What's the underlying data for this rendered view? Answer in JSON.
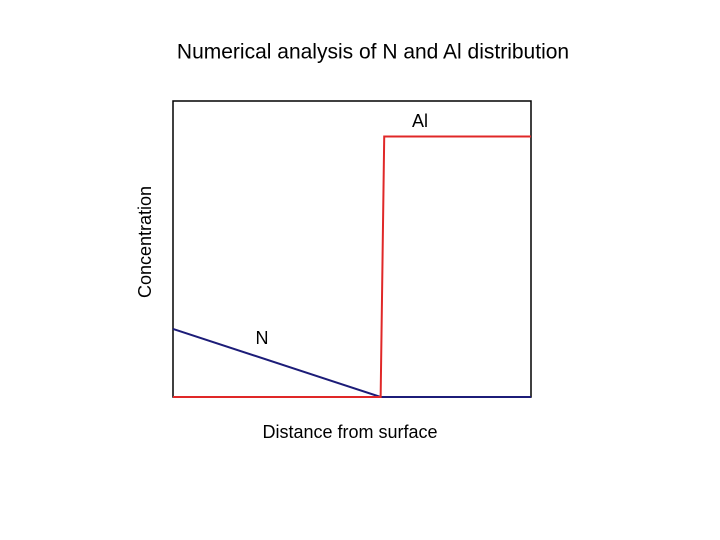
{
  "chart_data": {
    "type": "line",
    "title": "Numerical analysis of N and Al distribution",
    "x_label": "Distance from surface",
    "y_label": "Concentration",
    "x": [
      0,
      58,
      59,
      100
    ],
    "series": [
      {
        "name": "N",
        "color": "#1c1c78",
        "values": [
          23,
          0,
          0,
          0
        ]
      },
      {
        "name": "Al",
        "color": "#e02828",
        "values": [
          0,
          0,
          88,
          88
        ]
      }
    ],
    "xlim": [
      0,
      100
    ],
    "ylim": [
      0,
      100
    ]
  }
}
